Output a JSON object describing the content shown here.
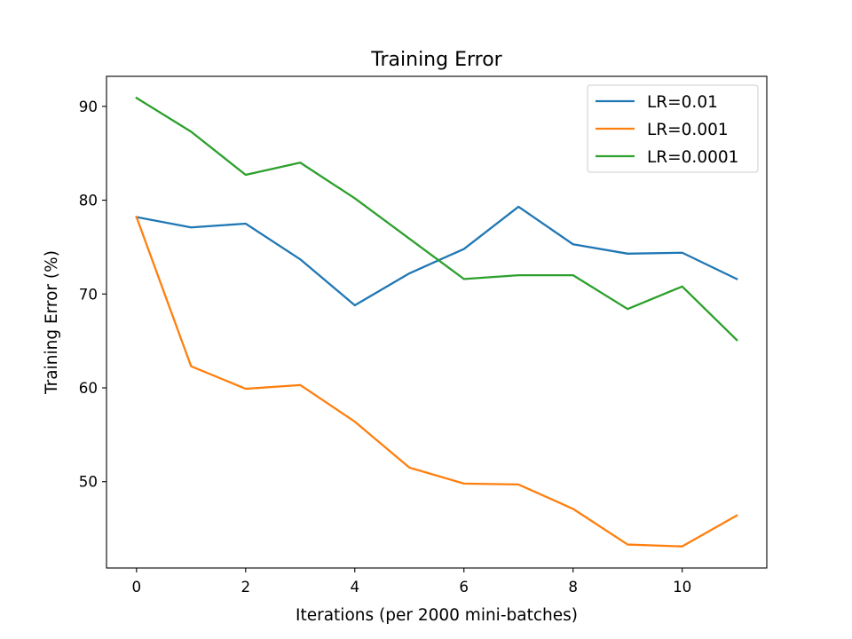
{
  "chart_data": {
    "type": "line",
    "title": "Training Error",
    "xlabel": "Iterations (per 2000 mini-batches)",
    "ylabel": "Training Error (%)",
    "x": [
      0,
      1,
      2,
      3,
      4,
      5,
      6,
      7,
      8,
      9,
      10,
      11
    ],
    "xlim": [
      -0.55,
      11.55
    ],
    "ylim": [
      40.8,
      93.2
    ],
    "xticks": [
      0,
      2,
      4,
      6,
      8,
      10
    ],
    "yticks": [
      50,
      60,
      70,
      80,
      90
    ],
    "xtick_labels": [
      "0",
      "2",
      "4",
      "6",
      "8",
      "10"
    ],
    "ytick_labels": [
      "50",
      "60",
      "70",
      "80",
      "90"
    ],
    "grid": false,
    "legend": "top-right",
    "series": [
      {
        "name": "LR=0.01",
        "color": "#1f77b4",
        "values": [
          78.2,
          77.1,
          77.5,
          73.7,
          68.8,
          72.2,
          74.8,
          79.3,
          75.3,
          74.3,
          74.4,
          71.6
        ]
      },
      {
        "name": "LR=0.001",
        "color": "#ff7f0e",
        "values": [
          78.2,
          62.3,
          59.9,
          60.3,
          56.4,
          51.5,
          49.8,
          49.7,
          47.1,
          43.3,
          43.1,
          46.4
        ]
      },
      {
        "name": "LR=0.0001",
        "color": "#2ca02c",
        "values": [
          90.9,
          87.3,
          82.7,
          84.0,
          80.2,
          75.9,
          71.6,
          72.0,
          72.0,
          68.4,
          70.8,
          65.1
        ]
      }
    ]
  }
}
